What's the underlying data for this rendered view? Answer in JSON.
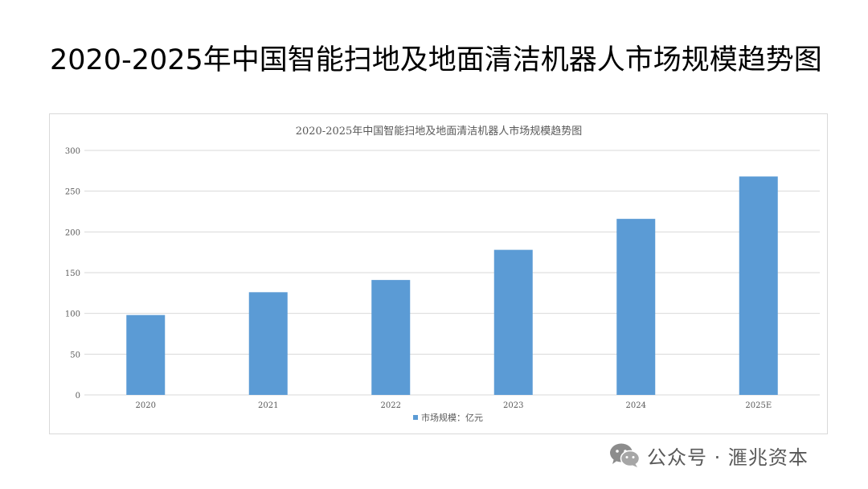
{
  "page_title": "2020-2025年中国智能扫地及地面清洁机器人市场规模趋势图",
  "watermark": {
    "icon": "wechat-icon",
    "text": "公众号 · 滙兆资本"
  },
  "colors": {
    "bar": "#5b9bd5",
    "grid": "#d9d9d9",
    "axis_text": "#595959"
  },
  "chart_data": {
    "type": "bar",
    "title": "2020-2025年中国智能扫地及地面清洁机器人市场规模趋势图",
    "categories": [
      "2020",
      "2021",
      "2022",
      "2023",
      "2024",
      "2025E"
    ],
    "series": [
      {
        "name": "市场规模：亿元",
        "values": [
          98,
          126,
          141,
          178,
          216,
          268
        ]
      }
    ],
    "xlabel": "",
    "ylabel": "",
    "ylim": [
      0,
      300
    ],
    "yticks": [
      0,
      50,
      100,
      150,
      200,
      250,
      300
    ],
    "grid": true,
    "legend_position": "bottom"
  }
}
